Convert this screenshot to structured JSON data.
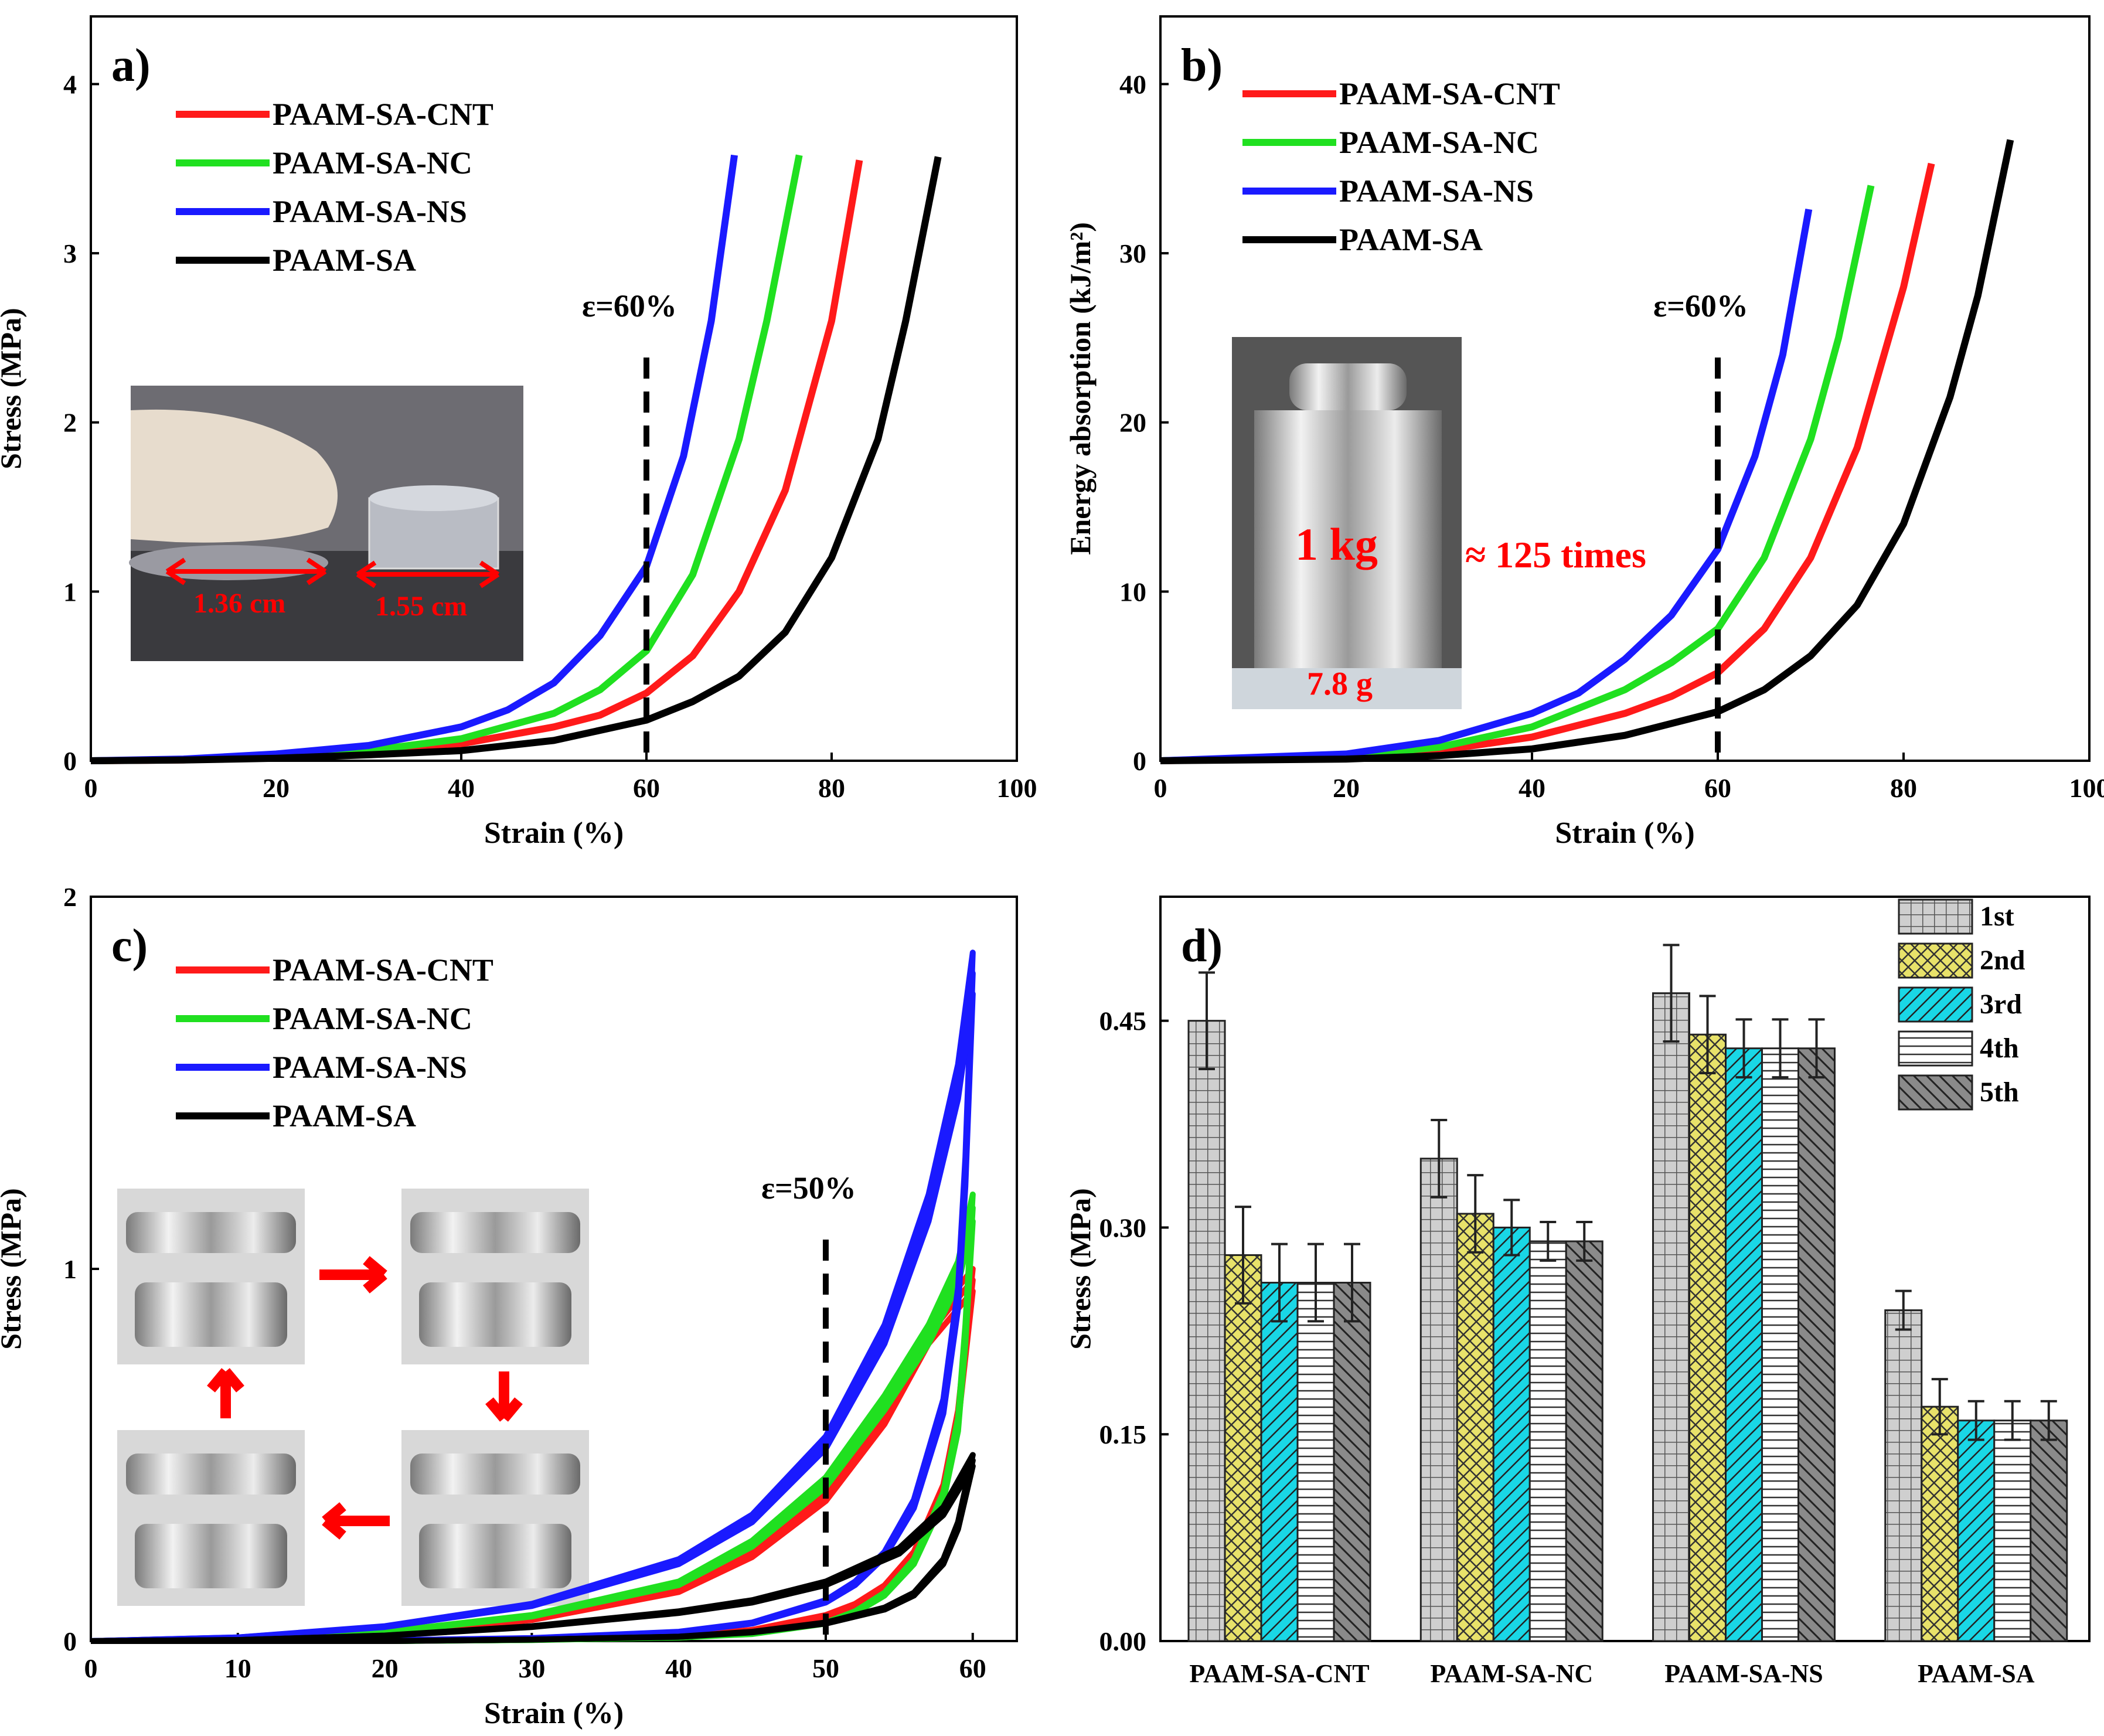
{
  "colors": {
    "PAAM-SA-CNT": "#ff1a1a",
    "PAAM-SA-NC": "#20e020",
    "PAAM-SA-NS": "#1a1aff",
    "PAAM-SA": "#000000",
    "photo_label": "#ff0000"
  },
  "inset_photo_a": {
    "icon": "hydrogel-compression-photo-icon",
    "label_left": "1.36 cm",
    "label_right": "1.55 cm"
  },
  "inset_photo_b": {
    "icon": "weight-photo-icon",
    "weight_label": "1 kg",
    "mass_label": "7.8 g",
    "ratio_label": "≈ 125 times"
  },
  "inset_photo_c": {
    "icon": "cyclic-compression-photos-icon"
  },
  "chart_data": [
    {
      "panel": "a)",
      "type": "line",
      "title": "",
      "xlabel": "Strain (%)",
      "ylabel": "Stress (MPa)",
      "xlim": [
        0,
        100
      ],
      "ylim": [
        0,
        4.4
      ],
      "xticks": [
        0,
        20,
        40,
        60,
        80,
        100
      ],
      "yticks": [
        0,
        1,
        2,
        3,
        4
      ],
      "grid": false,
      "legend_position": "top-left",
      "annotation": {
        "text": "ε=60%",
        "x": 60
      },
      "series": [
        {
          "name": "PAAM-SA-CNT",
          "x": [
            0,
            10,
            20,
            30,
            40,
            50,
            55,
            60,
            65,
            70,
            75,
            80,
            83
          ],
          "y": [
            0,
            0.005,
            0.02,
            0.05,
            0.1,
            0.2,
            0.27,
            0.4,
            0.62,
            1.0,
            1.6,
            2.6,
            3.55
          ]
        },
        {
          "name": "PAAM-SA-NC",
          "x": [
            0,
            10,
            20,
            30,
            40,
            50,
            55,
            60,
            65,
            70,
            73,
            76.5
          ],
          "y": [
            0,
            0.006,
            0.025,
            0.06,
            0.13,
            0.28,
            0.42,
            0.65,
            1.1,
            1.9,
            2.6,
            3.58
          ]
        },
        {
          "name": "PAAM-SA-NS",
          "x": [
            0,
            10,
            20,
            30,
            40,
            45,
            50,
            55,
            60,
            64,
            67,
            69.5
          ],
          "y": [
            0,
            0.01,
            0.04,
            0.09,
            0.2,
            0.3,
            0.46,
            0.74,
            1.15,
            1.8,
            2.6,
            3.58
          ]
        },
        {
          "name": "PAAM-SA",
          "x": [
            0,
            10,
            20,
            30,
            40,
            50,
            60,
            65,
            70,
            75,
            80,
            85,
            88,
            91.5
          ],
          "y": [
            0,
            0.004,
            0.015,
            0.035,
            0.06,
            0.12,
            0.24,
            0.35,
            0.5,
            0.76,
            1.2,
            1.9,
            2.6,
            3.57
          ]
        }
      ]
    },
    {
      "panel": "b)",
      "type": "line",
      "title": "",
      "xlabel": "Strain (%)",
      "ylabel": "Energy absorption (kJ/m²)",
      "xlim": [
        0,
        100
      ],
      "ylim": [
        0,
        44
      ],
      "xticks": [
        0,
        20,
        40,
        60,
        80,
        100
      ],
      "yticks": [
        0,
        10,
        20,
        30,
        40
      ],
      "grid": false,
      "legend_position": "top-left",
      "annotation": {
        "text": "ε=60%",
        "x": 60
      },
      "series": [
        {
          "name": "PAAM-SA-CNT",
          "x": [
            0,
            20,
            30,
            40,
            50,
            55,
            60,
            65,
            70,
            75,
            80,
            83
          ],
          "y": [
            0,
            0.2,
            0.6,
            1.4,
            2.8,
            3.8,
            5.2,
            7.8,
            12,
            18.5,
            28,
            35.3
          ]
        },
        {
          "name": "PAAM-SA-NC",
          "x": [
            0,
            20,
            30,
            40,
            50,
            55,
            60,
            65,
            70,
            73,
            76.5
          ],
          "y": [
            0,
            0.3,
            0.8,
            2.0,
            4.2,
            5.8,
            7.8,
            12,
            19,
            25,
            34
          ]
        },
        {
          "name": "PAAM-SA-NS",
          "x": [
            0,
            20,
            30,
            40,
            45,
            50,
            55,
            60,
            64,
            67,
            69.8
          ],
          "y": [
            0,
            0.4,
            1.2,
            2.8,
            4.0,
            6.0,
            8.6,
            12.5,
            18,
            24,
            32.6
          ]
        },
        {
          "name": "PAAM-SA",
          "x": [
            0,
            20,
            30,
            40,
            50,
            60,
            65,
            70,
            75,
            80,
            85,
            88,
            91.5
          ],
          "y": [
            0,
            0.1,
            0.3,
            0.7,
            1.5,
            2.9,
            4.2,
            6.2,
            9.2,
            14,
            21.5,
            27.5,
            36.7
          ]
        }
      ]
    },
    {
      "panel": "c)",
      "type": "line",
      "title": "",
      "xlabel": "Strain (%)",
      "ylabel": "Stress (MPa)",
      "xlim": [
        0,
        63
      ],
      "ylim": [
        0,
        2
      ],
      "xticks": [
        0,
        10,
        20,
        30,
        40,
        50,
        60
      ],
      "yticks": [
        0,
        1,
        2
      ],
      "grid": false,
      "legend_position": "top-left",
      "annotation": {
        "text": "ε=50%",
        "x": 50
      },
      "series": [
        {
          "name": "PAAM-SA-CNT",
          "loading": {
            "x": [
              0,
              10,
              20,
              30,
              40,
              45,
              50,
              54,
              57,
              60
            ],
            "y": [
              0,
              0.004,
              0.02,
              0.06,
              0.14,
              0.24,
              0.4,
              0.62,
              0.85,
              1.0
            ]
          },
          "unloading": {
            "x": [
              60,
              59,
              58,
              56,
              54,
              52,
              50,
              45,
              40,
              30,
              20,
              10,
              0
            ],
            "y": [
              1.0,
              0.62,
              0.42,
              0.24,
              0.15,
              0.1,
              0.07,
              0.03,
              0.015,
              0.005,
              0.001,
              0,
              0
            ]
          }
        },
        {
          "name": "PAAM-SA-NC",
          "loading": {
            "x": [
              0,
              10,
              20,
              30,
              40,
              45,
              50,
              54,
              57,
              59,
              60
            ],
            "y": [
              0,
              0.005,
              0.025,
              0.07,
              0.16,
              0.27,
              0.44,
              0.66,
              0.85,
              1.02,
              1.2
            ]
          },
          "unloading": {
            "x": [
              60,
              59.5,
              59,
              58,
              56,
              54,
              52,
              50,
              45,
              40,
              30,
              20,
              10,
              0
            ],
            "y": [
              1.2,
              0.85,
              0.6,
              0.4,
              0.22,
              0.13,
              0.08,
              0.05,
              0.02,
              0.01,
              0.003,
              0,
              0,
              0
            ]
          }
        },
        {
          "name": "PAAM-SA-NS",
          "loading": {
            "x": [
              0,
              10,
              20,
              30,
              40,
              45,
              50,
              54,
              57,
              59,
              60
            ],
            "y": [
              0,
              0.01,
              0.04,
              0.1,
              0.22,
              0.34,
              0.55,
              0.85,
              1.2,
              1.55,
              1.85
            ]
          },
          "unloading": {
            "x": [
              60,
              59.5,
              59,
              58,
              56,
              54,
              52,
              50,
              45,
              40,
              30,
              20,
              10,
              0
            ],
            "y": [
              1.85,
              1.3,
              0.95,
              0.65,
              0.38,
              0.24,
              0.16,
              0.11,
              0.05,
              0.025,
              0.008,
              0.002,
              0,
              0
            ]
          }
        },
        {
          "name": "PAAM-SA",
          "loading": {
            "x": [
              0,
              10,
              20,
              30,
              40,
              45,
              50,
              55,
              58,
              60
            ],
            "y": [
              0,
              0.003,
              0.015,
              0.04,
              0.08,
              0.11,
              0.16,
              0.25,
              0.36,
              0.5
            ]
          },
          "unloading": {
            "x": [
              60,
              59,
              58,
              56,
              54,
              52,
              50,
              45,
              40,
              30,
              20,
              10,
              0
            ],
            "y": [
              0.5,
              0.32,
              0.22,
              0.13,
              0.09,
              0.07,
              0.05,
              0.025,
              0.012,
              0.004,
              0,
              0,
              0
            ]
          }
        }
      ]
    },
    {
      "panel": "d)",
      "type": "bar",
      "title": "",
      "xlabel": "",
      "ylabel": "Stress (MPa)",
      "ylim": [
        0,
        0.54
      ],
      "yticks": [
        "0.00",
        "0.15",
        "0.30",
        "0.45"
      ],
      "legend_position": "top-right",
      "categories": [
        "PAAM-SA-CNT",
        "PAAM-SA-NC",
        "PAAM-SA-NS",
        "PAAM-SA"
      ],
      "series": [
        {
          "name": "1st",
          "pattern": "grid",
          "values": [
            0.45,
            0.35,
            0.47,
            0.24
          ],
          "errors": [
            0.035,
            0.028,
            0.035,
            0.014
          ]
        },
        {
          "name": "2nd",
          "pattern": "crosshatch-yellow",
          "values": [
            0.28,
            0.31,
            0.44,
            0.17
          ],
          "errors": [
            0.035,
            0.028,
            0.028,
            0.02
          ]
        },
        {
          "name": "3rd",
          "pattern": "diagonal-cyan",
          "values": [
            0.26,
            0.3,
            0.43,
            0.16
          ],
          "errors": [
            0.028,
            0.02,
            0.021,
            0.014
          ]
        },
        {
          "name": "4th",
          "pattern": "horizontal-lines",
          "values": [
            0.26,
            0.29,
            0.43,
            0.16
          ],
          "errors": [
            0.028,
            0.014,
            0.021,
            0.014
          ]
        },
        {
          "name": "5th",
          "pattern": "diagonal-gray",
          "values": [
            0.26,
            0.29,
            0.43,
            0.16
          ],
          "errors": [
            0.028,
            0.014,
            0.021,
            0.014
          ]
        }
      ]
    }
  ]
}
